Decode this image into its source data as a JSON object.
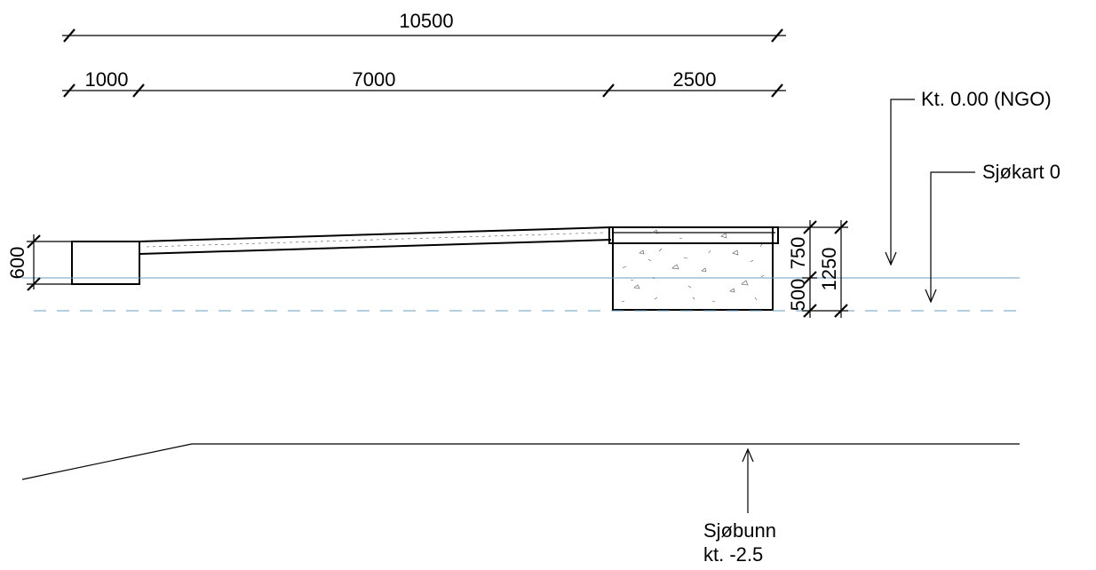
{
  "dimensions": {
    "total": "10500",
    "segments": [
      "1000",
      "7000",
      "2500"
    ],
    "left_height": "600",
    "right_heights": [
      "750",
      "500"
    ],
    "right_total": "1250"
  },
  "levels": {
    "ngo": "Kt. 0.00 (NGO)",
    "chart_datum": "Sjøkart 0",
    "seabed_line1": "Sjøbunn",
    "seabed_line2": "kt. -2.5"
  },
  "colors": {
    "line": "#000000",
    "water_level": "#6a9ec4"
  }
}
